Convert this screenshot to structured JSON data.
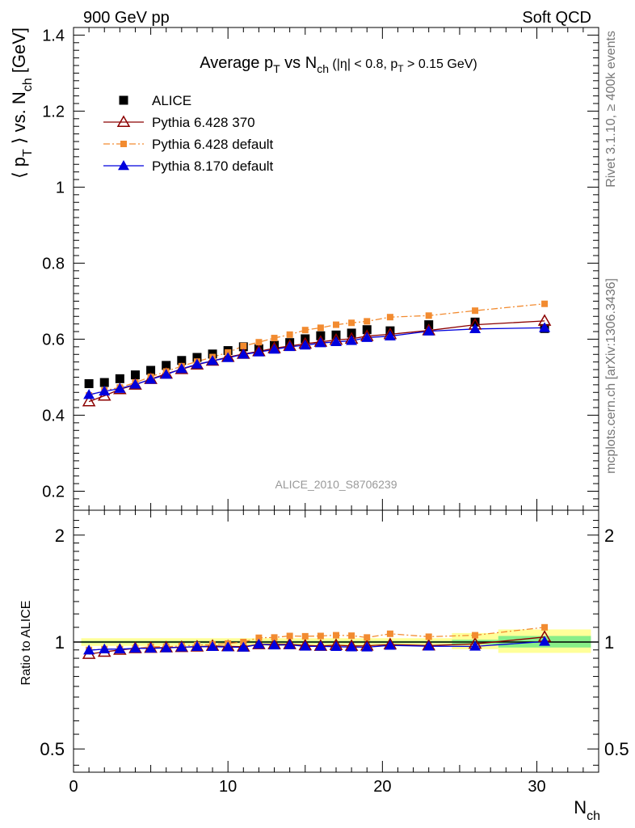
{
  "header": {
    "left": "900 GeV pp",
    "right": "Soft QCD"
  },
  "side_labels": {
    "top": "Rivet 3.1.10, ≥ 400k events",
    "bottom": "mcplots.cern.ch [arXiv:1306.3436]"
  },
  "watermark": "ALICE_2010_S8706239",
  "chart_data": [
    {
      "type": "scatter",
      "panel": "main",
      "title": {
        "main": "Average p",
        "sub1": "T",
        "mid": " vs N",
        "sub2": "ch",
        "tail_a": " (|η| < 0.8, p",
        "tail_sub": "T",
        "tail_b": " > 0.15 GeV)"
      },
      "ylabel": {
        "a": "⟨ p",
        "sub1": "T",
        "b": " ⟩ vs. N",
        "sub2": "ch",
        "c": " [GeV]"
      },
      "xlim": [
        0,
        34
      ],
      "ylim": [
        0.15,
        1.42
      ],
      "yticks": [
        0.2,
        0.4,
        0.6,
        0.8,
        1,
        1.2,
        1.4
      ],
      "ytick_labels": [
        "0.2",
        "0.4",
        "0.6",
        "0.8",
        "1",
        "1.2",
        "1.4"
      ],
      "legend_position": "top-left",
      "series": [
        {
          "name": "ALICE",
          "color": "#000000",
          "marker": "square",
          "x": [
            1,
            2,
            3,
            4,
            5,
            6,
            7,
            8,
            9,
            10,
            11,
            12,
            13,
            14,
            15,
            16,
            17,
            18,
            19,
            20.5,
            23,
            26,
            30.5
          ],
          "y": [
            0.483,
            0.486,
            0.496,
            0.506,
            0.518,
            0.531,
            0.544,
            0.552,
            0.561,
            0.57,
            0.58,
            0.575,
            0.584,
            0.591,
            0.601,
            0.609,
            0.611,
            0.616,
            0.625,
            0.622,
            0.638,
            0.645,
            0.628
          ]
        },
        {
          "name": "Pythia 6.428 370",
          "color": "#8b0000",
          "marker": "triangle-open",
          "line": "solid",
          "x": [
            1,
            2,
            3,
            4,
            5,
            6,
            7,
            8,
            9,
            10,
            11,
            12,
            13,
            14,
            15,
            16,
            17,
            18,
            19,
            20.5,
            23,
            26,
            30.5
          ],
          "y": [
            0.436,
            0.451,
            0.468,
            0.48,
            0.495,
            0.509,
            0.521,
            0.533,
            0.543,
            0.553,
            0.561,
            0.568,
            0.576,
            0.582,
            0.588,
            0.593,
            0.598,
            0.601,
            0.608,
            0.613,
            0.623,
            0.638,
            0.648
          ]
        },
        {
          "name": "Pythia 6.428 default",
          "color": "#f28b30",
          "marker": "square-small",
          "line": "dashdot",
          "x": [
            1,
            2,
            3,
            4,
            5,
            6,
            7,
            8,
            9,
            10,
            11,
            12,
            13,
            14,
            15,
            16,
            17,
            18,
            19,
            20.5,
            23,
            26,
            30.5
          ],
          "y": [
            0.452,
            0.465,
            0.473,
            0.486,
            0.501,
            0.515,
            0.529,
            0.541,
            0.553,
            0.565,
            0.582,
            0.592,
            0.603,
            0.612,
            0.624,
            0.63,
            0.638,
            0.643,
            0.647,
            0.658,
            0.662,
            0.675,
            0.693
          ]
        },
        {
          "name": "Pythia 8.170 default",
          "color": "#0000dd",
          "marker": "triangle-filled",
          "line": "solid",
          "x": [
            1,
            2,
            3,
            4,
            5,
            6,
            7,
            8,
            9,
            10,
            11,
            12,
            13,
            14,
            15,
            16,
            17,
            18,
            19,
            20.5,
            23,
            26,
            30.5
          ],
          "y": [
            0.454,
            0.463,
            0.47,
            0.481,
            0.494,
            0.507,
            0.522,
            0.534,
            0.543,
            0.551,
            0.56,
            0.566,
            0.573,
            0.58,
            0.584,
            0.59,
            0.593,
            0.596,
            0.604,
            0.608,
            0.621,
            0.627,
            0.63
          ]
        }
      ]
    },
    {
      "type": "scatter",
      "panel": "ratio",
      "ylabel": "Ratio to ALICE",
      "yscale": "log",
      "xlim": [
        0,
        34
      ],
      "ylim": [
        0.43,
        2.35
      ],
      "yticks": [
        0.5,
        1,
        2
      ],
      "ytick_labels": [
        "0.5",
        "1",
        "2"
      ],
      "xticks": [
        0,
        10,
        20,
        30
      ],
      "xtick_labels": [
        "0",
        "10",
        "20",
        "30"
      ],
      "xlabel": {
        "a": "N",
        "sub": "ch"
      },
      "reference_line": 1,
      "band_inner": {
        "color": "#88ee88",
        "x": [
          0.5,
          24.5,
          24.5,
          27.5,
          27.5,
          33.5
        ],
        "x_end": [
          24.5,
          27.5,
          27.5,
          33.5,
          33.5,
          33.5
        ],
        "segments": [
          {
            "x0": 0.5,
            "x1": 24.5,
            "lo": 0.993,
            "hi": 1.007
          },
          {
            "x0": 24.5,
            "x1": 27.5,
            "lo": 0.985,
            "hi": 1.015
          },
          {
            "x0": 27.5,
            "x1": 33.5,
            "lo": 0.965,
            "hi": 1.04
          }
        ]
      },
      "band_outer": {
        "color": "#ffff99",
        "segments": [
          {
            "x0": 0.5,
            "x1": 24.5,
            "lo": 0.975,
            "hi": 1.025
          },
          {
            "x0": 24.5,
            "x1": 27.5,
            "lo": 0.955,
            "hi": 1.06
          },
          {
            "x0": 27.5,
            "x1": 33.5,
            "lo": 0.932,
            "hi": 1.085
          }
        ]
      },
      "series": [
        {
          "name": "Pythia 6.428 370",
          "color": "#8b0000",
          "marker": "triangle-open",
          "line": "solid",
          "x": [
            1,
            2,
            3,
            4,
            5,
            6,
            7,
            8,
            9,
            10,
            11,
            12,
            13,
            14,
            15,
            16,
            17,
            18,
            19,
            20.5,
            23,
            26,
            30.5
          ],
          "y": [
            0.925,
            0.938,
            0.95,
            0.96,
            0.962,
            0.965,
            0.967,
            0.97,
            0.975,
            0.972,
            0.97,
            0.985,
            0.985,
            0.985,
            0.978,
            0.975,
            0.98,
            0.975,
            0.976,
            0.984,
            0.977,
            0.988,
            1.033
          ]
        },
        {
          "name": "Pythia 6.428 default",
          "color": "#f28b30",
          "marker": "square-small",
          "line": "dashdot",
          "x": [
            1,
            2,
            3,
            4,
            5,
            6,
            7,
            8,
            9,
            10,
            11,
            12,
            13,
            14,
            15,
            16,
            17,
            18,
            19,
            20.5,
            23,
            26,
            30.5
          ],
          "y": [
            0.95,
            0.955,
            0.955,
            0.96,
            0.97,
            0.97,
            0.975,
            0.98,
            0.985,
            0.99,
            1.0,
            1.028,
            1.03,
            1.04,
            1.038,
            1.04,
            1.045,
            1.042,
            1.03,
            1.055,
            1.035,
            1.045,
            1.1
          ]
        },
        {
          "name": "Pythia 8.170 default",
          "color": "#0000dd",
          "marker": "triangle-filled",
          "line": "solid",
          "x": [
            1,
            2,
            3,
            4,
            5,
            6,
            7,
            8,
            9,
            10,
            11,
            12,
            13,
            14,
            15,
            16,
            17,
            18,
            19,
            20.5,
            23,
            26,
            30.5
          ],
          "y": [
            0.948,
            0.955,
            0.955,
            0.96,
            0.96,
            0.962,
            0.967,
            0.97,
            0.97,
            0.968,
            0.966,
            0.985,
            0.98,
            0.982,
            0.972,
            0.972,
            0.97,
            0.968,
            0.967,
            0.978,
            0.973,
            0.972,
            1.003
          ]
        }
      ]
    }
  ]
}
